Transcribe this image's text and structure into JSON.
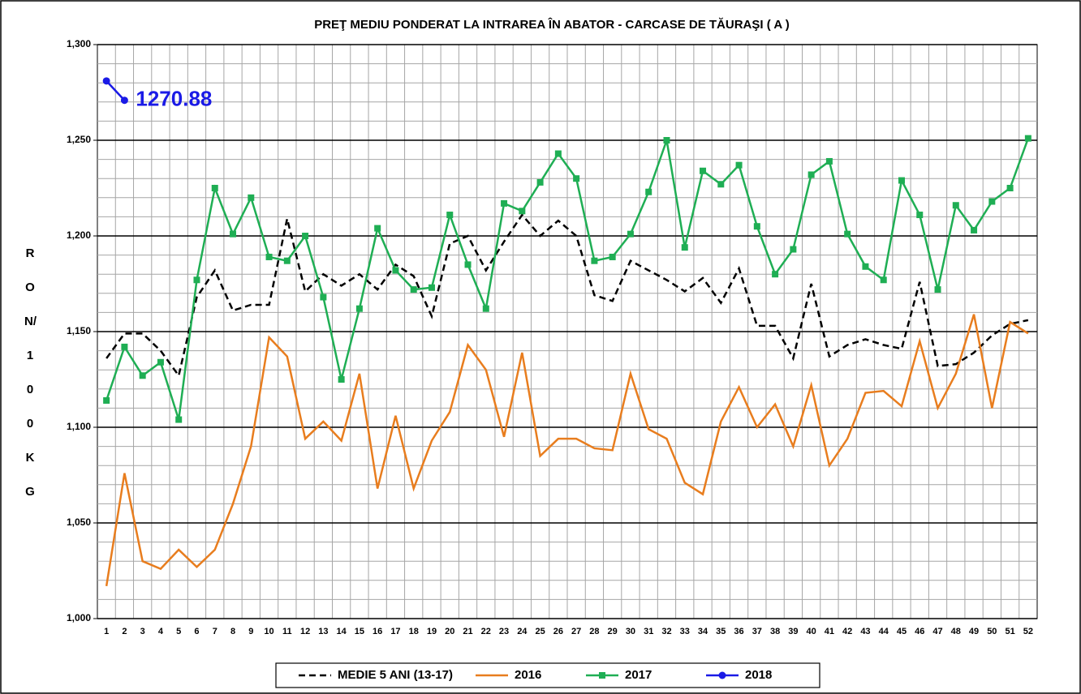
{
  "chart_data": {
    "type": "line",
    "title": "PREŢ MEDIU PONDERAT LA INTRAREA ÎN ABATOR - CARCASE DE TĂURAŞI ( A )",
    "y_label": "RON/100KG",
    "annotation": "1270.88",
    "categories": [
      "1",
      "2",
      "3",
      "4",
      "5",
      "6",
      "7",
      "8",
      "9",
      "10",
      "11",
      "12",
      "13",
      "14",
      "15",
      "16",
      "17",
      "18",
      "19",
      "20",
      "21",
      "22",
      "23",
      "24",
      "25",
      "26",
      "27",
      "28",
      "29",
      "30",
      "31",
      "32",
      "33",
      "34",
      "35",
      "36",
      "37",
      "38",
      "39",
      "40",
      "41",
      "42",
      "43",
      "44",
      "45",
      "46",
      "47",
      "48",
      "49",
      "50",
      "51",
      "52"
    ],
    "ylim": [
      1000,
      1300
    ],
    "yticks": [
      {
        "value": 1000,
        "label": "1,000"
      },
      {
        "value": 1050,
        "label": "1,050"
      },
      {
        "value": 1100,
        "label": "1,100"
      },
      {
        "value": 1150,
        "label": "1,150"
      },
      {
        "value": 1200,
        "label": "1,200"
      },
      {
        "value": 1250,
        "label": "1,250"
      },
      {
        "value": 1300,
        "label": "1,300"
      }
    ],
    "minor_yticks": [
      1010,
      1020,
      1030,
      1040,
      1060,
      1070,
      1080,
      1090,
      1110,
      1120,
      1130,
      1140,
      1160,
      1170,
      1180,
      1190,
      1210,
      1220,
      1230,
      1240,
      1260,
      1270,
      1280,
      1290
    ],
    "grid": true,
    "legend": "bottom",
    "series": [
      {
        "name": "MEDIE 5 ANI (13-17)",
        "color": "#000000",
        "dash": true,
        "marker": "none",
        "values": [
          1136,
          1149,
          1149,
          1140,
          1127,
          1168,
          1182,
          1161,
          1164,
          1164,
          1209,
          1171,
          1180,
          1174,
          1180,
          1172,
          1185,
          1179,
          1158,
          1196,
          1200,
          1182,
          1197,
          1211,
          1200,
          1208,
          1200,
          1169,
          1166,
          1187,
          1182,
          1177,
          1171,
          1178,
          1165,
          1183,
          1153,
          1153,
          1136,
          1175,
          1137,
          1143,
          1146,
          1143,
          1141,
          1176,
          1132,
          1133,
          1139,
          1148,
          1154,
          1156
        ]
      },
      {
        "name": "2016",
        "color": "#e87d1e",
        "dash": false,
        "marker": "none",
        "values": [
          1017,
          1076,
          1030,
          1026,
          1036,
          1027,
          1036,
          1060,
          1090,
          1147,
          1137,
          1094,
          1103,
          1093,
          1128,
          1068,
          1106,
          1068,
          1093,
          1108,
          1143,
          1130,
          1095,
          1139,
          1085,
          1094,
          1094,
          1089,
          1088,
          1128,
          1099,
          1094,
          1071,
          1065,
          1103,
          1121,
          1100,
          1112,
          1090,
          1122,
          1080,
          1094,
          1118,
          1119,
          1111,
          1145,
          1110,
          1128,
          1159,
          1110,
          1155,
          1149
        ]
      },
      {
        "name": "2017",
        "color": "#1fae54",
        "dash": false,
        "marker": "square",
        "values": [
          1114,
          1142,
          1127,
          1134,
          1104,
          1177,
          1225,
          1201,
          1220,
          1189,
          1187,
          1200,
          1168,
          1125,
          1162,
          1204,
          1182,
          1172,
          1173,
          1211,
          1185,
          1162,
          1217,
          1213,
          1228,
          1243,
          1230,
          1187,
          1189,
          1201,
          1223,
          1250,
          1194,
          1234,
          1227,
          1237,
          1205,
          1180,
          1193,
          1232,
          1239,
          1201,
          1184,
          1177,
          1229,
          1211,
          1172,
          1216,
          1203,
          1218,
          1225,
          1251
        ]
      },
      {
        "name": "2018",
        "color": "#1a1ae6",
        "dash": false,
        "marker": "circle",
        "values": [
          1281,
          1270.88,
          null,
          null,
          null,
          null,
          null,
          null,
          null,
          null,
          null,
          null,
          null,
          null,
          null,
          null,
          null,
          null,
          null,
          null,
          null,
          null,
          null,
          null,
          null,
          null,
          null,
          null,
          null,
          null,
          null,
          null,
          null,
          null,
          null,
          null,
          null,
          null,
          null,
          null,
          null,
          null,
          null,
          null,
          null,
          null,
          null,
          null,
          null,
          null,
          null,
          null
        ]
      }
    ]
  }
}
